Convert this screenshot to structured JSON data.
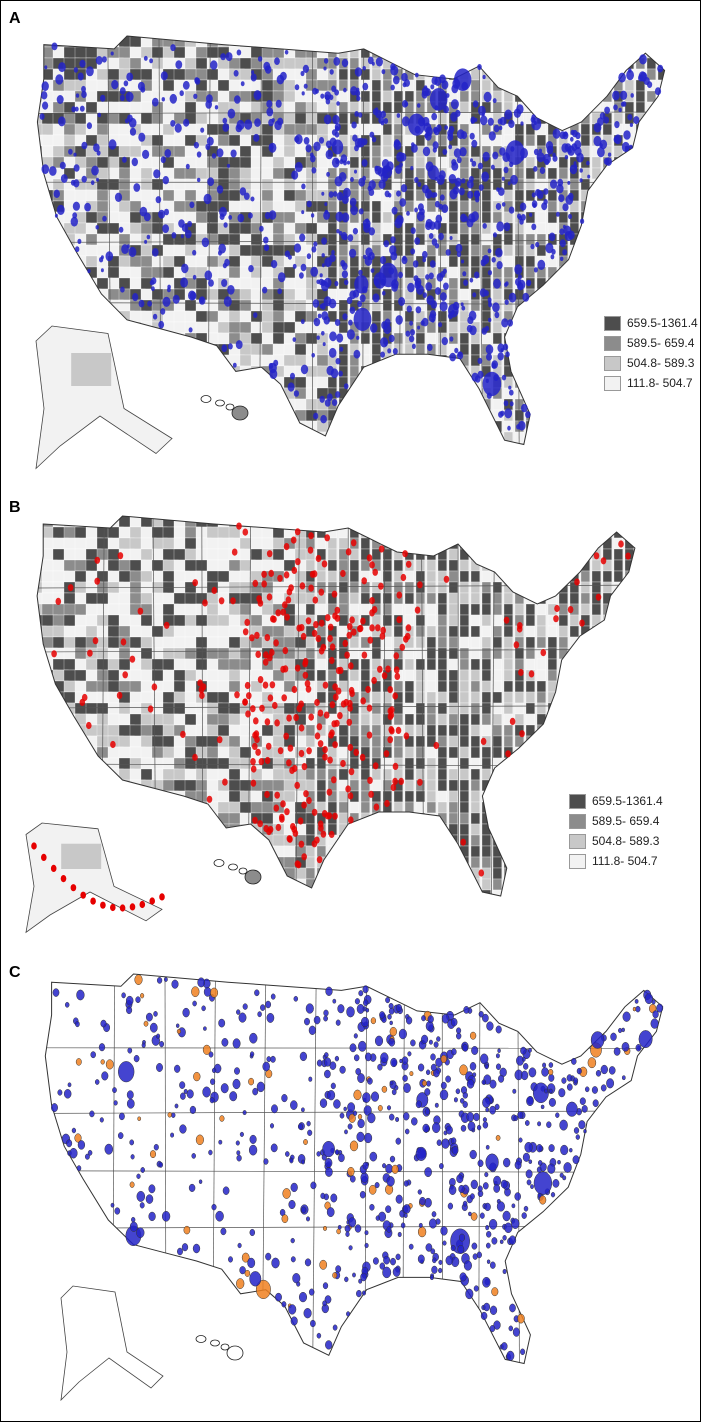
{
  "panels": [
    {
      "label": "A",
      "dots": "blue"
    },
    {
      "label": "B",
      "dots": "red"
    },
    {
      "label": "C",
      "dots": "mixed"
    }
  ],
  "legend": {
    "items": [
      {
        "label": "659.5-1361.4",
        "color": "#4d4d4d"
      },
      {
        "label": "589.5- 659.4",
        "color": "#8c8c8c"
      },
      {
        "label": "504.8- 589.3",
        "color": "#c8c8c8"
      },
      {
        "label": "111.8- 504.7",
        "color": "#f2f2f2"
      }
    ]
  },
  "colors": {
    "blue_dot": "#2323c8",
    "red_dot": "#e60000",
    "orange_dot": "#f08020",
    "border": "#555555"
  }
}
